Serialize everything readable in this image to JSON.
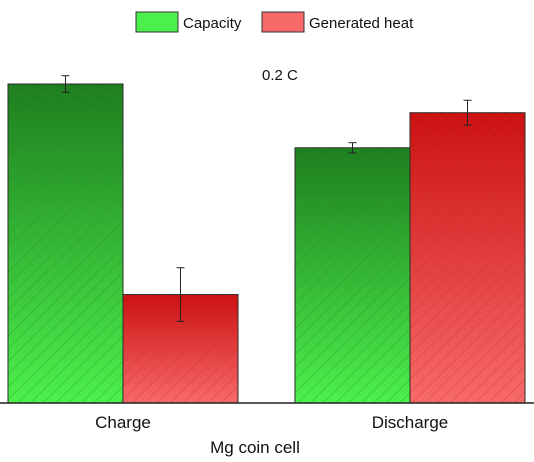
{
  "chart_data": {
    "type": "bar",
    "annotation": "0.2 C",
    "xlabel": "Mg coin cell",
    "ylabel": "",
    "categories": [
      "Charge",
      "Discharge"
    ],
    "ylim": [
      0,
      100
    ],
    "grid": false,
    "legend_position": "top",
    "series": [
      {
        "name": "Capacity",
        "values": [
          100,
          80
        ],
        "errors": [
          2.6,
          1.6
        ],
        "color_top": "#1e7e1e",
        "color_bottom": "#4cf04c",
        "hatch_color": "#2a8f2a"
      },
      {
        "name": "Generated heat",
        "values": [
          34,
          91
        ],
        "errors": [
          8.4,
          3.9
        ],
        "color_top": "#cc1111",
        "color_bottom": "#f86a6a",
        "hatch_color": "#c53030"
      }
    ]
  }
}
